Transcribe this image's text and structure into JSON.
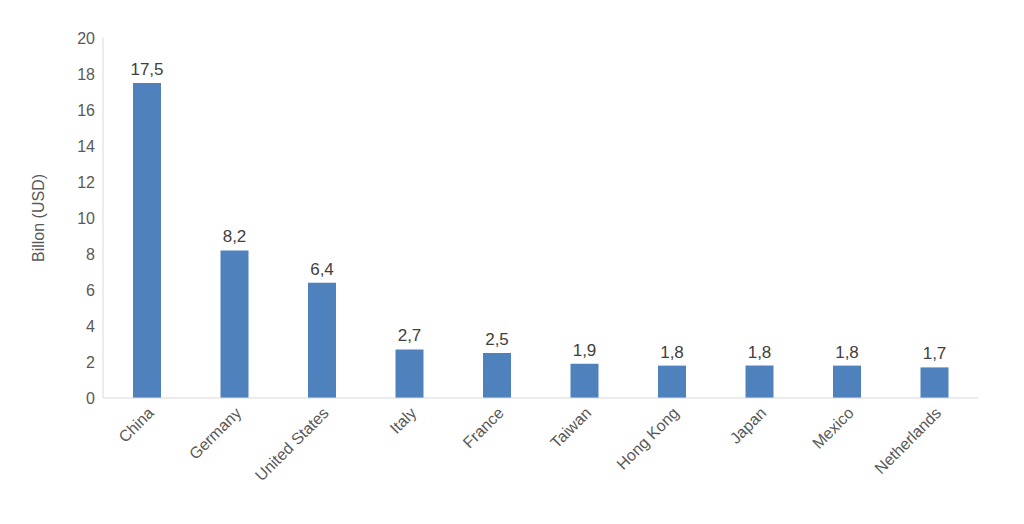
{
  "chart_data": {
    "type": "bar",
    "y_label": "Billon (USD)",
    "categories": [
      "China",
      "Germany",
      "United States",
      "Italy",
      "France",
      "Taiwan",
      "Hong Kong",
      "Japan",
      "Mexico",
      "Netherlands"
    ],
    "values": [
      17.5,
      8.2,
      6.4,
      2.7,
      2.5,
      1.9,
      1.8,
      1.8,
      1.8,
      1.7
    ],
    "value_labels": [
      "17,5",
      "8,2",
      "6,4",
      "2,7",
      "2,5",
      "1,9",
      "1,8",
      "1,8",
      "1,8",
      "1,7"
    ],
    "color": "#4f81bd",
    "ylim": [
      0,
      20
    ],
    "yticks": [
      0,
      2,
      4,
      6,
      8,
      10,
      12,
      14,
      16,
      18,
      20
    ],
    "grid": false,
    "data_labels": true
  }
}
